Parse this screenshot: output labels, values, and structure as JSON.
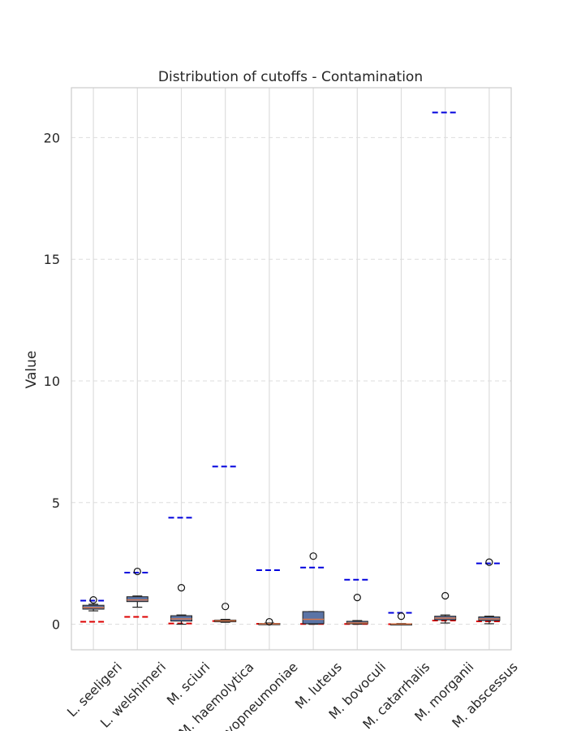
{
  "chart_data": {
    "type": "boxplot",
    "title": "Distribution of cutoffs - Contamination",
    "xlabel": "",
    "ylabel": "Value",
    "ylim": [
      -1.05,
      22.05
    ],
    "yticks": [
      0,
      5,
      10,
      15,
      20
    ],
    "grid": true,
    "legend": "none",
    "colors": {
      "box_fill": "#5b74a6",
      "median": "#d9774b",
      "upper_cutoff": "#0000dd",
      "lower_cutoff": "#dd0000",
      "grid": "#dddddd"
    },
    "categories": [
      "L. seeligeri",
      "L. welshimeri",
      "M. sciuri",
      "M. haemolytica",
      "M. hyopneumoniae",
      "M. luteus",
      "M. bovoculi",
      "M. catarrhalis",
      "M. morganii",
      "M. abscessus"
    ],
    "boxes": [
      {
        "whislo": 0.55,
        "q1": 0.62,
        "med": 0.68,
        "q3": 0.78,
        "whishi": 0.82,
        "fliers": [
          1.0
        ]
      },
      {
        "whislo": 0.7,
        "q1": 0.93,
        "med": 1.0,
        "q3": 1.13,
        "whishi": 1.16,
        "fliers": [
          2.17
        ]
      },
      {
        "whislo": 0.0,
        "q1": 0.13,
        "med": 0.22,
        "q3": 0.35,
        "whishi": 0.38,
        "fliers": [
          1.5
        ]
      },
      {
        "whislo": 0.08,
        "q1": 0.1,
        "med": 0.14,
        "q3": 0.17,
        "whishi": 0.2,
        "fliers": [
          0.73
        ]
      },
      {
        "whislo": 0.0,
        "q1": 0.01,
        "med": 0.02,
        "q3": 0.03,
        "whishi": 0.05,
        "fliers": [
          0.1
        ]
      },
      {
        "whislo": 0.0,
        "q1": 0.02,
        "med": 0.2,
        "q3": 0.52,
        "whishi": 0.52,
        "fliers": [
          2.8
        ]
      },
      {
        "whislo": 0.0,
        "q1": 0.02,
        "med": 0.05,
        "q3": 0.12,
        "whishi": 0.15,
        "fliers": [
          1.1
        ]
      },
      {
        "whislo": 0.0,
        "q1": 0.0,
        "med": 0.01,
        "q3": 0.02,
        "whishi": 0.03,
        "fliers": [
          0.33
        ]
      },
      {
        "whislo": 0.05,
        "q1": 0.18,
        "med": 0.25,
        "q3": 0.33,
        "whishi": 0.38,
        "fliers": [
          1.17
        ]
      },
      {
        "whislo": 0.02,
        "q1": 0.15,
        "med": 0.22,
        "q3": 0.3,
        "whishi": 0.33,
        "fliers": [
          2.55
        ]
      }
    ],
    "cutoff_lines": {
      "upper": [
        0.97,
        2.12,
        4.38,
        6.48,
        2.22,
        2.33,
        1.83,
        0.47,
        21.03,
        2.5
      ],
      "lower": [
        0.1,
        0.3,
        0.03,
        0.13,
        0.02,
        0.01,
        0.01,
        0.0,
        0.15,
        0.12
      ]
    }
  }
}
